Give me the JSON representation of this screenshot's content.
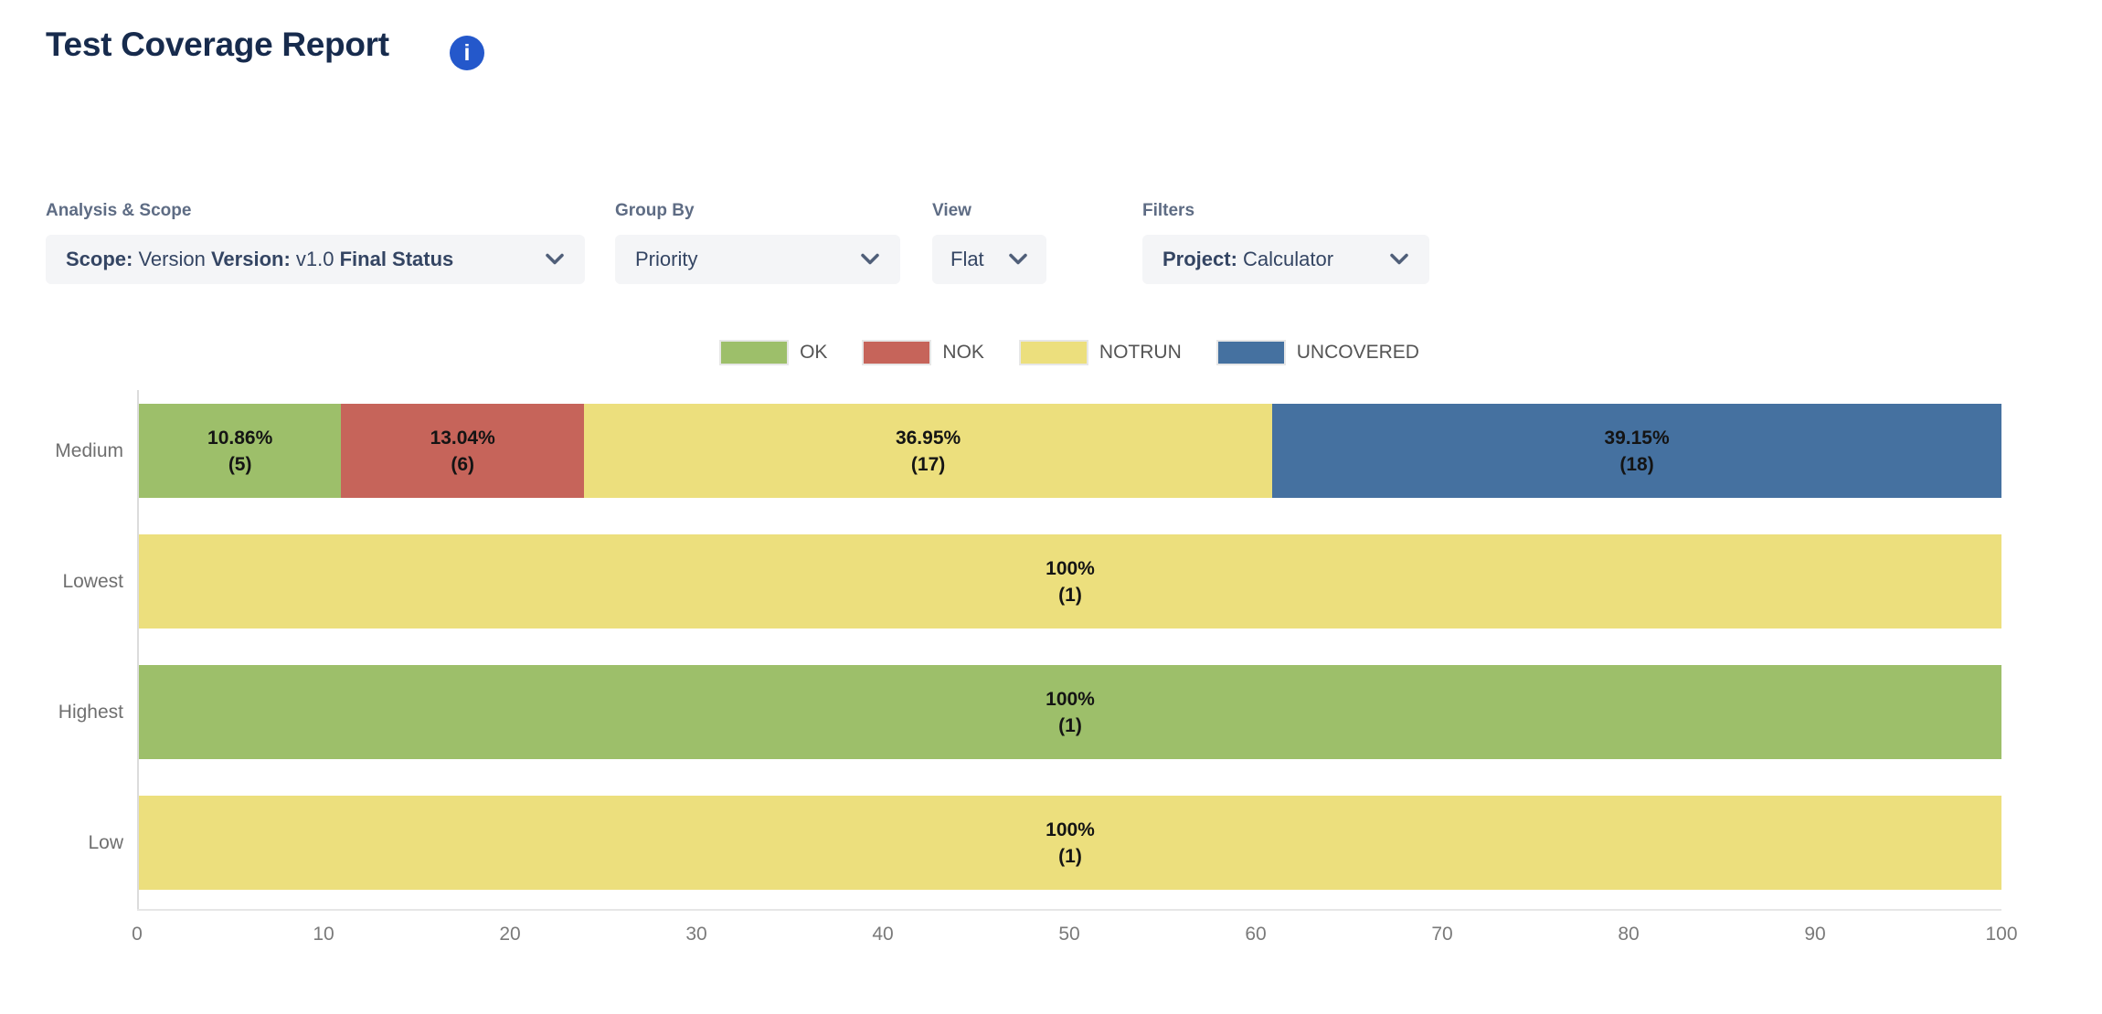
{
  "header": {
    "title": "Test Coverage Report",
    "info_icon": "info-icon"
  },
  "colors": {
    "title": "#172B4D",
    "info_icon_bg": "#2458CB",
    "control_label": "#5E6C84",
    "dropdown_bg": "#F4F5F7",
    "dropdown_text": "#344563",
    "chevron": "#505F79",
    "ok": "#9DBF6A",
    "nok": "#C6645A",
    "notrun": "#ECDF7D",
    "uncovered": "#4571A0",
    "axis_line": "#DCDCDC",
    "tick_text": "#7A7A7A",
    "category_text": "#6F6F6F",
    "bar_label": "#141414",
    "legend_text": "#545454",
    "legend_swatch_border": "#E7E7E7"
  },
  "controls": [
    {
      "id": "analysis-scope",
      "label": "Analysis & Scope",
      "value_parts": [
        {
          "text": "Scope:",
          "bold": true
        },
        {
          "text": " Version ",
          "bold": false
        },
        {
          "text": "Version:",
          "bold": true
        },
        {
          "text": " v1.0 ",
          "bold": false
        },
        {
          "text": "Final Status",
          "bold": true
        }
      ]
    },
    {
      "id": "group-by",
      "label": "Group By",
      "value_parts": [
        {
          "text": "Priority",
          "bold": false
        }
      ]
    },
    {
      "id": "view",
      "label": "View",
      "value_parts": [
        {
          "text": "Flat",
          "bold": false
        }
      ]
    },
    {
      "id": "filters",
      "label": "Filters",
      "value_parts": [
        {
          "text": "Project:",
          "bold": true
        },
        {
          "text": " Calculator",
          "bold": false
        }
      ]
    }
  ],
  "chart_data": {
    "type": "bar",
    "orientation": "horizontal",
    "stacked": true,
    "title": "",
    "xlabel": "",
    "ylabel": "",
    "xlim": [
      0,
      100
    ],
    "x_ticks": [
      0,
      10,
      20,
      30,
      40,
      50,
      60,
      70,
      80,
      90,
      100
    ],
    "grid": false,
    "legend": {
      "position": "top-center",
      "entries": [
        {
          "label": "OK",
          "status": "ok",
          "color": "#9DBF6A"
        },
        {
          "label": "NOK",
          "status": "nok",
          "color": "#C6645A"
        },
        {
          "label": "NOTRUN",
          "status": "notrun",
          "color": "#ECDF7D"
        },
        {
          "label": "UNCOVERED",
          "status": "uncovered",
          "color": "#4571A0"
        }
      ]
    },
    "categories": [
      "Medium",
      "Lowest",
      "Highest",
      "Low"
    ],
    "series": [
      {
        "name": "OK",
        "status": "ok",
        "values": [
          10.86,
          0,
          100,
          0
        ],
        "counts": [
          5,
          0,
          1,
          0
        ]
      },
      {
        "name": "NOK",
        "status": "nok",
        "values": [
          13.04,
          0,
          0,
          0
        ],
        "counts": [
          6,
          0,
          0,
          0
        ]
      },
      {
        "name": "NOTRUN",
        "status": "notrun",
        "values": [
          36.95,
          100,
          0,
          100
        ],
        "counts": [
          17,
          1,
          0,
          1
        ]
      },
      {
        "name": "UNCOVERED",
        "status": "uncovered",
        "values": [
          39.15,
          0,
          0,
          0
        ],
        "counts": [
          18,
          0,
          0,
          0
        ]
      }
    ],
    "rows": [
      {
        "category": "Medium",
        "segments": [
          {
            "status": "ok",
            "percent": 10.86,
            "count": 5,
            "label": "10.86%",
            "sublabel": "(5)"
          },
          {
            "status": "nok",
            "percent": 13.04,
            "count": 6,
            "label": "13.04%",
            "sublabel": "(6)"
          },
          {
            "status": "notrun",
            "percent": 36.95,
            "count": 17,
            "label": "36.95%",
            "sublabel": "(17)"
          },
          {
            "status": "uncovered",
            "percent": 39.15,
            "count": 18,
            "label": "39.15%",
            "sublabel": "(18)"
          }
        ]
      },
      {
        "category": "Lowest",
        "segments": [
          {
            "status": "notrun",
            "percent": 100,
            "count": 1,
            "label": "100%",
            "sublabel": "(1)"
          }
        ]
      },
      {
        "category": "Highest",
        "segments": [
          {
            "status": "ok",
            "percent": 100,
            "count": 1,
            "label": "100%",
            "sublabel": "(1)"
          }
        ]
      },
      {
        "category": "Low",
        "segments": [
          {
            "status": "notrun",
            "percent": 100,
            "count": 1,
            "label": "100%",
            "sublabel": "(1)"
          }
        ]
      }
    ]
  }
}
